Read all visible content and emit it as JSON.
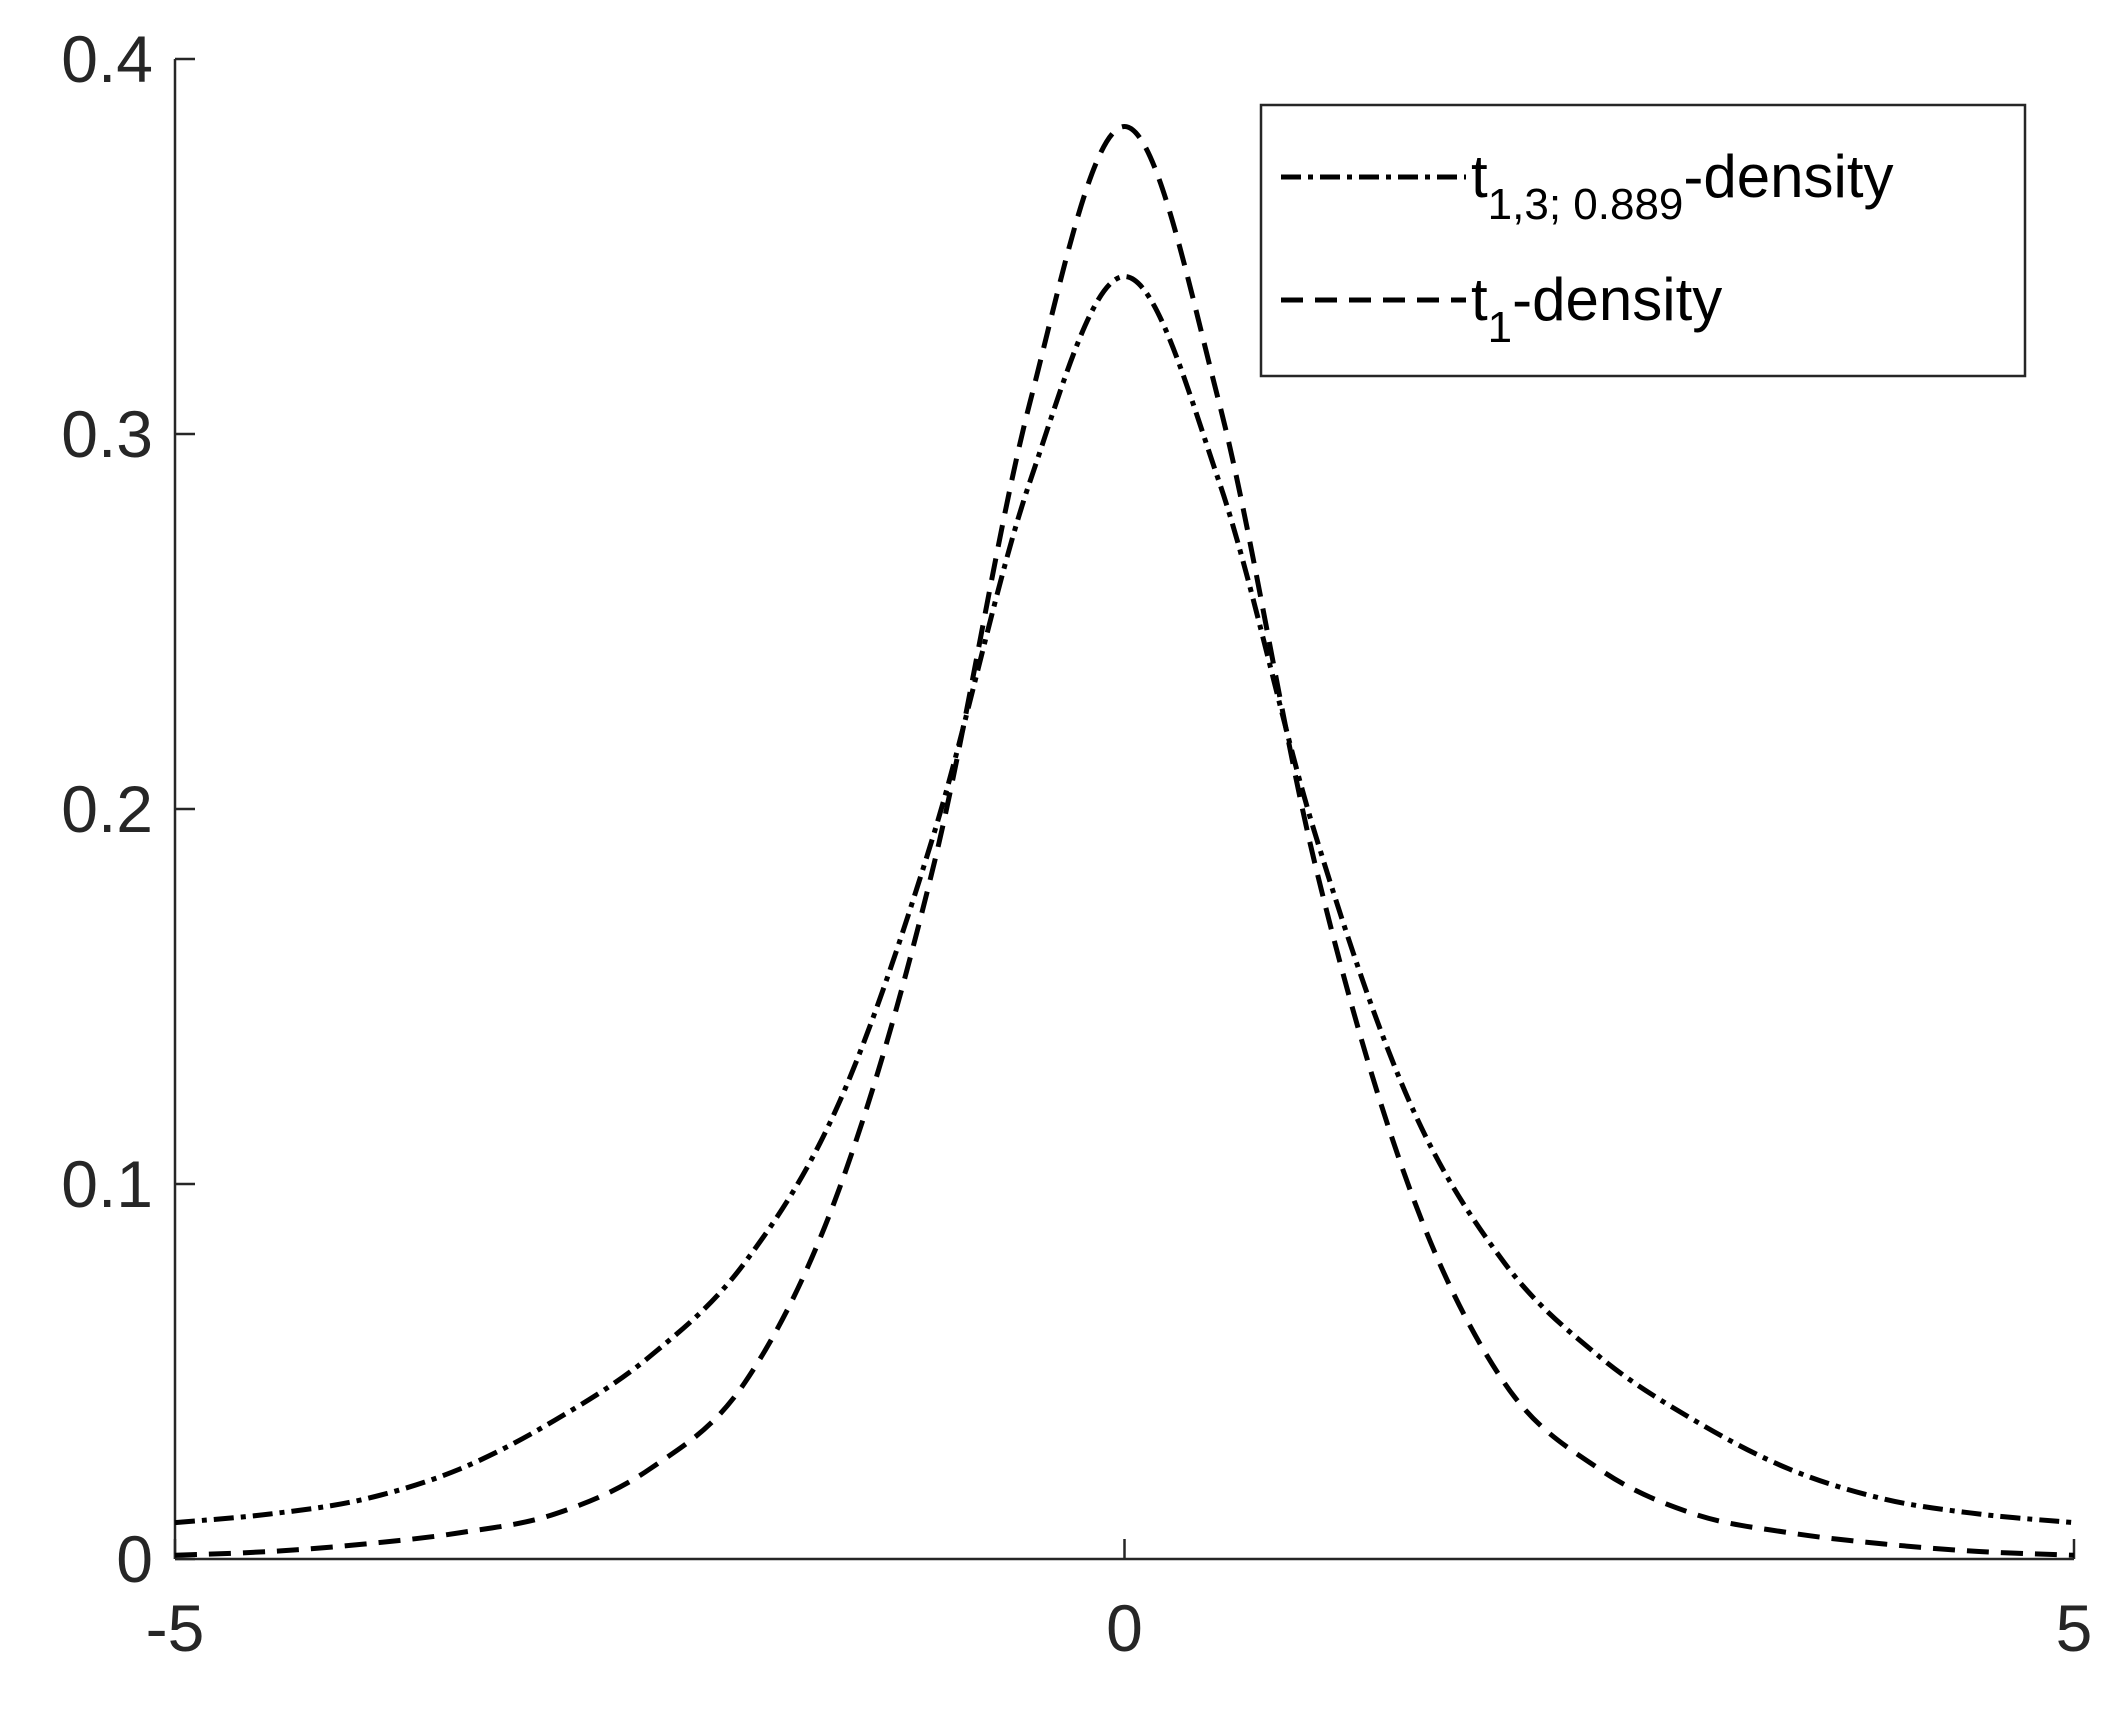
{
  "chart_data": {
    "type": "line",
    "x": [
      -5,
      -4.5,
      -4,
      -3.5,
      -3,
      -2.5,
      -2,
      -1.5,
      -1,
      -0.5,
      0,
      0.5,
      1,
      1.5,
      2,
      2.5,
      3,
      3.5,
      4,
      4.5,
      5
    ],
    "series": [
      {
        "name": [
          "t",
          "1,3; 0.889",
          "-density"
        ],
        "color": "#000000",
        "dash": "dashdot",
        "values": [
          0.0097,
          0.012,
          0.016,
          0.024,
          0.037,
          0.054,
          0.079,
          0.122,
          0.194,
          0.287,
          0.342,
          0.287,
          0.194,
          0.122,
          0.079,
          0.054,
          0.037,
          0.024,
          0.016,
          0.012,
          0.0097
        ]
      },
      {
        "name": [
          "t",
          "1",
          "-density"
        ],
        "color": "#000000",
        "dash": "dashed",
        "values": [
          0.001,
          0.002,
          0.004,
          0.007,
          0.012,
          0.024,
          0.047,
          0.099,
          0.186,
          0.308,
          0.382,
          0.308,
          0.186,
          0.099,
          0.047,
          0.024,
          0.012,
          0.007,
          0.004,
          0.002,
          0.001
        ]
      }
    ],
    "xlim": [
      -5,
      5
    ],
    "ylim": [
      0,
      0.4
    ],
    "xticks": [
      -5,
      0,
      5
    ],
    "yticks": [
      0,
      0.1,
      0.2,
      0.3,
      0.4
    ],
    "grid": false,
    "legend": "upper right"
  }
}
